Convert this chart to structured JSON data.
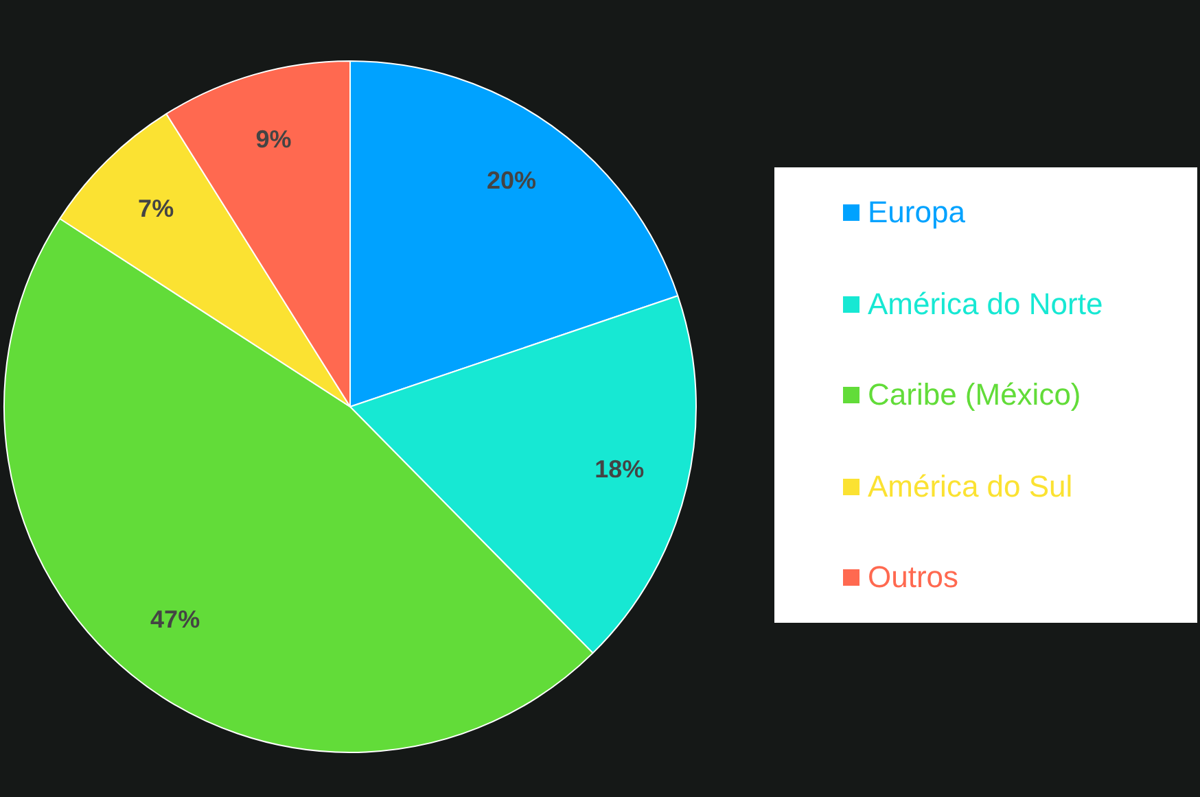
{
  "chart_data": {
    "type": "pie",
    "categories": [
      "Europa",
      "América do Norte",
      "Caribe (México)",
      "América do Sul",
      "Outros"
    ],
    "values": [
      20,
      18,
      47,
      7,
      9
    ],
    "colors": [
      "#00a2ff",
      "#17e8d3",
      "#62dc39",
      "#fbe232",
      "#ff6950"
    ],
    "value_labels": [
      "20%",
      "18%",
      "47%",
      "7%",
      "9%"
    ],
    "legend": "right"
  }
}
